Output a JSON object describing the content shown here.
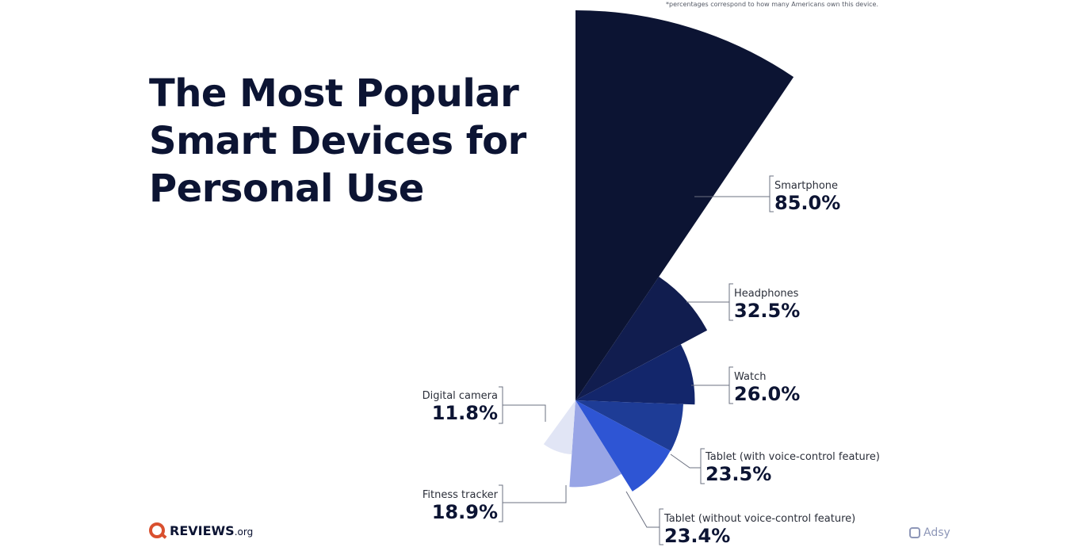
{
  "footnote": "*percentages correspond to how many Americans own this device.",
  "title_lines": [
    "The Most Popular",
    "Smart Devices for",
    "Personal Use"
  ],
  "brand": {
    "name": "REVIEWS",
    "suffix": ".org",
    "color": "#d9502f"
  },
  "credit": "Adsy",
  "chart_data": {
    "type": "radial-bar",
    "title": "The Most Popular Smart Devices for Personal Use",
    "categories": [
      "Smartphone",
      "Headphones",
      "Watch",
      "Tablet (with voice-control feature)",
      "Tablet (without voice-control feature)",
      "Fitness tracker",
      "Digital camera"
    ],
    "values": [
      85.0,
      32.5,
      26.0,
      23.5,
      23.4,
      18.9,
      11.8
    ],
    "labels": [
      "85.0%",
      "32.5%",
      "26.0%",
      "23.5%",
      "23.4%",
      "18.9%",
      "11.8%"
    ],
    "colors": [
      "#0c1433",
      "#111d4f",
      "#13266b",
      "#1e3c96",
      "#2e55d4",
      "#98a5e6",
      "#e1e5f5"
    ],
    "unit": "%"
  }
}
